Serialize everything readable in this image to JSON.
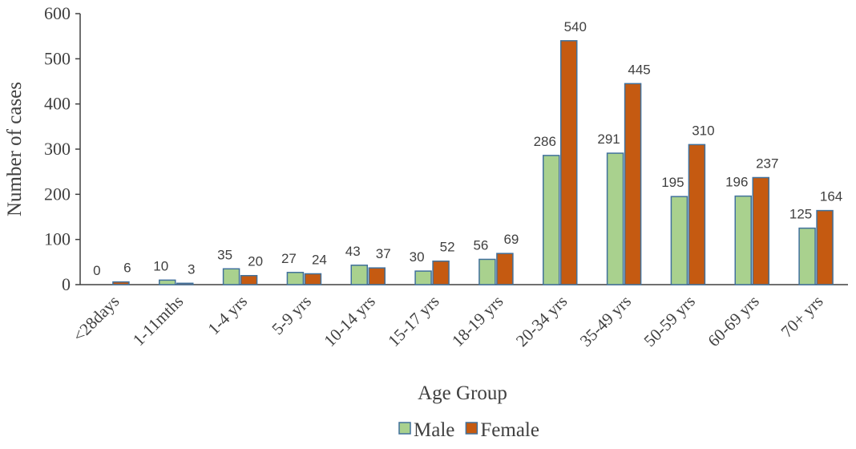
{
  "chart_data": {
    "type": "bar",
    "ylabel": "Number of cases",
    "xlabel": "Age Group",
    "categories": [
      "<28days",
      "1-11mths",
      "1-4 yrs",
      "5-9 yrs",
      "10-14 yrs",
      "15-17 yrs",
      "18-19 yrs",
      "20-34 yrs",
      "35-49 yrs",
      "50-59 yrs",
      "60-69 yrs",
      "70+ yrs"
    ],
    "series": [
      {
        "name": "Male",
        "color": "#a9d18e",
        "values": [
          0,
          10,
          35,
          27,
          43,
          30,
          56,
          286,
          291,
          195,
          196,
          125
        ]
      },
      {
        "name": "Female",
        "color": "#c55a11",
        "values": [
          6,
          3,
          20,
          24,
          37,
          52,
          69,
          540,
          445,
          310,
          237,
          164
        ]
      }
    ],
    "ylim": [
      0,
      600
    ],
    "yticks": [
      0,
      100,
      200,
      300,
      400,
      500,
      600
    ],
    "grid": false,
    "legend": "bottom"
  }
}
